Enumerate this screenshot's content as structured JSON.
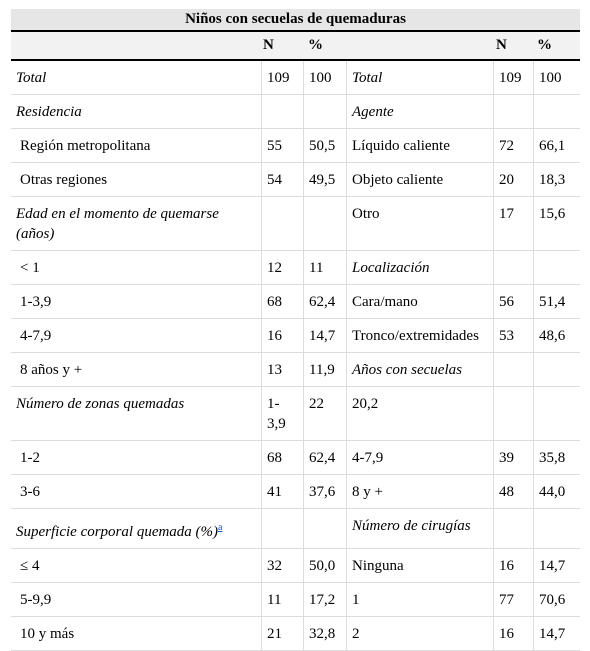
{
  "table": {
    "title": "Niños con secuelas de quemaduras",
    "headers": [
      "",
      "N",
      "%",
      "",
      "N",
      "%"
    ],
    "footnote_marker": "a",
    "rows": [
      [
        {
          "t": "Total",
          "s": "it"
        },
        {
          "t": "109"
        },
        {
          "t": "100"
        },
        {
          "t": "Total",
          "s": "it"
        },
        {
          "t": "109"
        },
        {
          "t": "100"
        }
      ],
      [
        {
          "t": "Residencia",
          "s": "it"
        },
        {
          "t": ""
        },
        {
          "t": ""
        },
        {
          "t": "Agente",
          "s": "it"
        },
        {
          "t": ""
        },
        {
          "t": ""
        }
      ],
      [
        {
          "t": "Región metropolitana",
          "s": "ind"
        },
        {
          "t": "55"
        },
        {
          "t": "50,5"
        },
        {
          "t": "Líquido caliente"
        },
        {
          "t": "72"
        },
        {
          "t": "66,1"
        }
      ],
      [
        {
          "t": "Otras regiones",
          "s": "ind"
        },
        {
          "t": "54"
        },
        {
          "t": "49,5"
        },
        {
          "t": "Objeto caliente"
        },
        {
          "t": "20"
        },
        {
          "t": "18,3"
        }
      ],
      [
        {
          "t": "Edad en el momento de quemarse (años)",
          "s": "it"
        },
        {
          "t": ""
        },
        {
          "t": ""
        },
        {
          "t": "Otro"
        },
        {
          "t": "17"
        },
        {
          "t": "15,6"
        }
      ],
      [
        {
          "t": "< 1",
          "s": "ind"
        },
        {
          "t": "12"
        },
        {
          "t": "11"
        },
        {
          "t": "Localización",
          "s": "it"
        },
        {
          "t": ""
        },
        {
          "t": ""
        }
      ],
      [
        {
          "t": "1-3,9",
          "s": "ind"
        },
        {
          "t": "68"
        },
        {
          "t": "62,4"
        },
        {
          "t": "Cara/mano"
        },
        {
          "t": "56"
        },
        {
          "t": "51,4"
        }
      ],
      [
        {
          "t": "4-7,9",
          "s": "ind"
        },
        {
          "t": "16"
        },
        {
          "t": "14,7"
        },
        {
          "t": "Tronco/extremidades"
        },
        {
          "t": "53"
        },
        {
          "t": "48,6"
        }
      ],
      [
        {
          "t": "8 años y +",
          "s": "ind"
        },
        {
          "t": "13"
        },
        {
          "t": "11,9"
        },
        {
          "t": "Años con secuelas",
          "s": "it"
        },
        {
          "t": ""
        },
        {
          "t": ""
        }
      ],
      [
        {
          "t": "Número de zonas quemadas",
          "s": "it"
        },
        {
          "t": "1-3,9"
        },
        {
          "t": "22"
        },
        {
          "t": "20,2"
        },
        {
          "t": ""
        },
        {
          "t": ""
        }
      ],
      [
        {
          "t": "1-2",
          "s": "ind"
        },
        {
          "t": "68"
        },
        {
          "t": "62,4"
        },
        {
          "t": "4-7,9"
        },
        {
          "t": "39"
        },
        {
          "t": "35,8"
        }
      ],
      [
        {
          "t": "3-6",
          "s": "ind"
        },
        {
          "t": "41"
        },
        {
          "t": "37,6"
        },
        {
          "t": "8 y +"
        },
        {
          "t": "48"
        },
        {
          "t": "44,0"
        }
      ],
      [
        {
          "t": "Superficie corporal quemada (%)",
          "s": "it",
          "fn": true
        },
        {
          "t": ""
        },
        {
          "t": ""
        },
        {
          "t": "Número de cirugías",
          "s": "it"
        },
        {
          "t": ""
        },
        {
          "t": ""
        }
      ],
      [
        {
          "t": "≤ 4",
          "s": "ind"
        },
        {
          "t": "32"
        },
        {
          "t": "50,0"
        },
        {
          "t": "Ninguna"
        },
        {
          "t": "16"
        },
        {
          "t": "14,7"
        }
      ],
      [
        {
          "t": "5-9,9",
          "s": "ind"
        },
        {
          "t": "11"
        },
        {
          "t": "17,2"
        },
        {
          "t": "1"
        },
        {
          "t": "77"
        },
        {
          "t": "70,6"
        }
      ],
      [
        {
          "t": "10 y más",
          "s": "ind"
        },
        {
          "t": "21"
        },
        {
          "t": "32,8"
        },
        {
          "t": "2"
        },
        {
          "t": "16"
        },
        {
          "t": "14,7"
        }
      ]
    ]
  }
}
